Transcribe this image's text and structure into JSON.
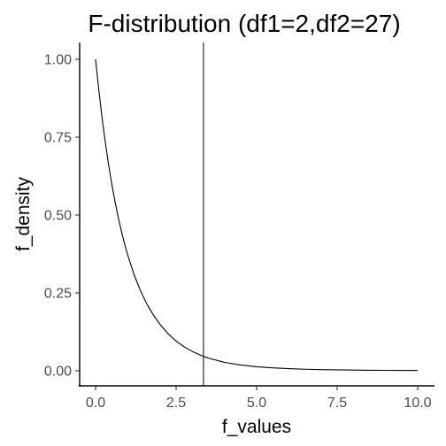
{
  "chart_data": {
    "type": "line",
    "title": "F-distribution (df1=2,df2=27)",
    "xlabel": "f_values",
    "ylabel": "f_density",
    "xlim": [
      0,
      10
    ],
    "ylim": [
      0,
      1
    ],
    "x_ticks": [
      0,
      2.5,
      5,
      7.5,
      10
    ],
    "x_tick_labels": [
      "0.0",
      "2.5",
      "5.0",
      "7.5",
      "10.0"
    ],
    "y_ticks": [
      0,
      0.25,
      0.5,
      0.75,
      1
    ],
    "y_tick_labels": [
      "0.00",
      "0.25",
      "0.50",
      "0.75",
      "1.00"
    ],
    "grid": false,
    "series": [
      {
        "x": [
          0,
          0.1,
          0.2,
          0.3,
          0.4,
          0.5,
          0.6,
          0.7,
          0.8,
          0.9,
          1.0,
          1.2,
          1.4,
          1.6,
          1.8,
          2.0,
          2.25,
          2.5,
          2.75,
          3.0,
          3.35,
          3.5,
          4.0,
          4.5,
          5.0,
          5.5,
          6.0,
          6.5,
          7.0,
          7.5,
          8.0,
          8.5,
          9.0,
          9.5,
          10.0
        ],
        "values": [
          1.0,
          0.9015,
          0.8136,
          0.735,
          0.6646,
          0.6016,
          0.5451,
          0.4944,
          0.4487,
          0.4077,
          0.3708,
          0.3072,
          0.2554,
          0.2129,
          0.178,
          0.1492,
          0.1191,
          0.0954,
          0.0769,
          0.0623,
          0.0463,
          0.0408,
          0.0272,
          0.0186,
          0.013,
          0.0093,
          0.0068,
          0.005,
          0.0038,
          0.0029,
          0.0022,
          0.0017,
          0.0014,
          0.0011,
          0.0009
        ],
        "color": "#000000"
      }
    ],
    "vline": {
      "x": 3.35,
      "color": "#000000"
    }
  }
}
